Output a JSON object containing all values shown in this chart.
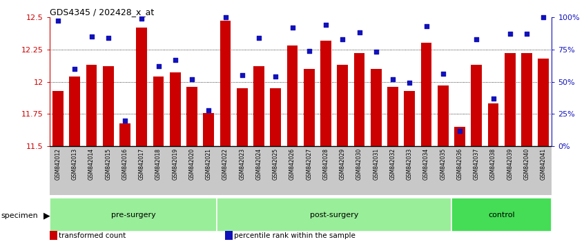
{
  "title": "GDS4345 / 202428_x_at",
  "categories": [
    "GSM842012",
    "GSM842013",
    "GSM842014",
    "GSM842015",
    "GSM842016",
    "GSM842017",
    "GSM842018",
    "GSM842019",
    "GSM842020",
    "GSM842021",
    "GSM842022",
    "GSM842023",
    "GSM842024",
    "GSM842025",
    "GSM842026",
    "GSM842027",
    "GSM842028",
    "GSM842029",
    "GSM842030",
    "GSM842031",
    "GSM842032",
    "GSM842033",
    "GSM842034",
    "GSM842035",
    "GSM842036",
    "GSM842037",
    "GSM842038",
    "GSM842039",
    "GSM842040",
    "GSM842041"
  ],
  "bar_values": [
    11.93,
    12.04,
    12.13,
    12.12,
    11.68,
    12.42,
    12.04,
    12.07,
    11.96,
    11.76,
    12.47,
    11.95,
    12.12,
    11.95,
    12.28,
    12.1,
    12.32,
    12.13,
    12.22,
    12.1,
    11.96,
    11.93,
    12.3,
    11.97,
    11.65,
    12.13,
    11.83,
    12.22,
    12.22,
    12.18
  ],
  "percentile_values": [
    97,
    60,
    85,
    84,
    20,
    99,
    62,
    67,
    52,
    28,
    100,
    55,
    84,
    54,
    92,
    74,
    94,
    83,
    88,
    73,
    52,
    49,
    93,
    56,
    12,
    83,
    37,
    87,
    87,
    100
  ],
  "bar_color": "#cc0000",
  "dot_color": "#1111bb",
  "ylim_left": [
    11.5,
    12.5
  ],
  "ylim_right": [
    0,
    100
  ],
  "yticks_left": [
    11.5,
    11.75,
    12.0,
    12.25,
    12.5
  ],
  "ytick_labels_left": [
    "11.5",
    "11.75",
    "12",
    "12.25",
    "12.5"
  ],
  "ytick_labels_right": [
    "0%",
    "25%",
    "50%",
    "75%",
    "100%"
  ],
  "group_data": [
    {
      "label": "pre-surgery",
      "start": 0,
      "end": 9,
      "color": "#99ee99"
    },
    {
      "label": "post-surgery",
      "start": 10,
      "end": 23,
      "color": "#99ee99"
    },
    {
      "label": "control",
      "start": 24,
      "end": 29,
      "color": "#44dd55"
    }
  ],
  "specimen_label": "specimen",
  "legend_items": [
    {
      "label": "transformed count",
      "color": "#cc0000"
    },
    {
      "label": "percentile rank within the sample",
      "color": "#1111bb"
    }
  ],
  "grid_lines": [
    11.75,
    12.0,
    12.25
  ],
  "bg_color": "#ffffff",
  "left_axis_color": "#cc0000",
  "right_axis_color": "#1111bb",
  "xtick_bg": "#c8c8c8"
}
